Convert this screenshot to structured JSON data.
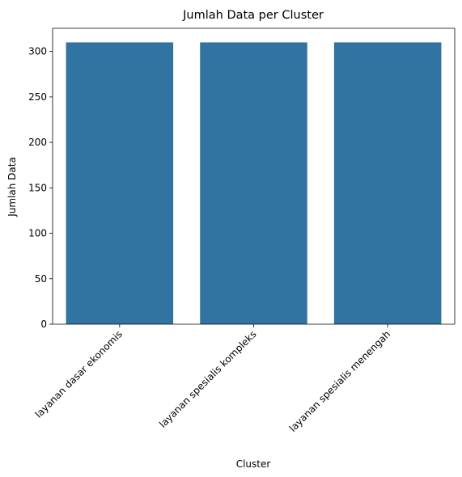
{
  "chart_data": {
    "type": "bar",
    "title": "Jumlah Data per Cluster",
    "xlabel": "Cluster",
    "ylabel": "Jumlah Data",
    "categories": [
      "layanan dasar ekonomis",
      "layanan spesialis kompleks",
      "layanan spesialis menengah"
    ],
    "values": [
      310,
      310,
      310
    ],
    "ylim": [
      0,
      325.5
    ],
    "yticks": [
      0,
      50,
      100,
      150,
      200,
      250,
      300
    ],
    "bar_color": "#3274a1",
    "grid": false,
    "legend": "none",
    "xtick_rotation": 45
  }
}
